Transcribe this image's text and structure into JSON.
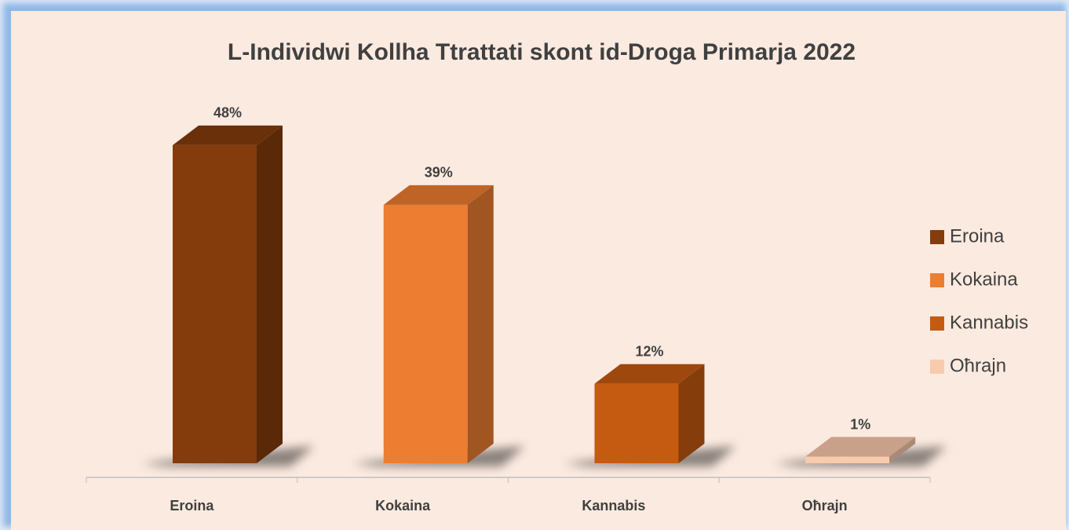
{
  "chart_data": {
    "type": "bar3d",
    "title": "L-Individwi Kollha Ttrattati skont id-Droga Primarja 2022",
    "categories": [
      "Eroina",
      "Kokaina",
      "Kannabis",
      "Oħrajn"
    ],
    "values": [
      48,
      39,
      12,
      1
    ],
    "value_labels": [
      "48%",
      "39%",
      "12%",
      "1%"
    ],
    "colors": [
      "#843c0c",
      "#ed7d31",
      "#c55a11",
      "#f8cbad"
    ],
    "legend": "right"
  }
}
